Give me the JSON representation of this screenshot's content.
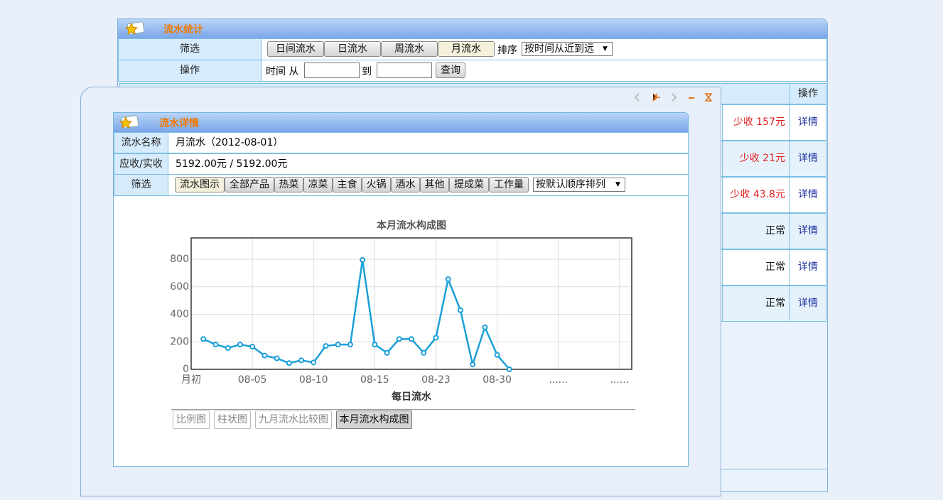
{
  "main_panel": {
    "title": "流水统计",
    "filter_label": "筛选",
    "filter_buttons": [
      "日间流水",
      "日流水",
      "周流水",
      "月流水"
    ],
    "sort_label": "排序",
    "sort_select": "按时间从近到远",
    "action_label": "操作",
    "time_from_label": "时间 从",
    "time_to_label": "到",
    "query_button": "查询",
    "table": {
      "header_action": "操作",
      "rows": [
        {
          "status": "少收 157元",
          "action": "详情"
        },
        {
          "status": "少收 21元",
          "action": "详情"
        },
        {
          "status": "少收 43.8元",
          "action": "详情"
        },
        {
          "status": "正常",
          "action": "详情"
        },
        {
          "status": "正常",
          "action": "详情"
        },
        {
          "status": "正常",
          "action": "详情"
        }
      ]
    }
  },
  "detail_dialog": {
    "title": "流水详情",
    "rows": [
      {
        "label": "流水名称",
        "value": "月流水（2012-08-01）"
      },
      {
        "label": "应收/实收",
        "value": "5192.00元 / 5192.00元"
      }
    ],
    "filter_label": "筛选",
    "filter_buttons": [
      "流水图示",
      "全部产品",
      "热菜",
      "凉菜",
      "主食",
      "火锅",
      "酒水",
      "其他",
      "提成菜",
      "工作量"
    ],
    "sort_select": "按默认顺序排列",
    "chart_tabs": [
      "比例图",
      "柱状图",
      "九月流水比较图",
      "本月流水构成图"
    ]
  },
  "chart_data": {
    "type": "line",
    "title": "本月流水构成图",
    "x_label": "每日流水",
    "x": [
      1,
      2,
      3,
      4,
      5,
      6,
      7,
      8,
      9,
      10,
      11,
      12,
      13,
      14,
      15,
      16,
      17,
      18,
      19,
      20,
      21,
      22,
      23,
      24,
      25,
      26
    ],
    "values": [
      220,
      180,
      155,
      180,
      165,
      100,
      80,
      45,
      65,
      50,
      170,
      180,
      180,
      795,
      180,
      120,
      220,
      220,
      120,
      230,
      655,
      430,
      35,
      305,
      105,
      0
    ],
    "color": "#1a9fd8",
    "xlim": [
      0,
      36
    ],
    "xticks": [
      {
        "value": 0,
        "label": "月初"
      },
      {
        "value": 5,
        "label": "08-05"
      },
      {
        "value": 10,
        "label": "08-10"
      },
      {
        "value": 15,
        "label": "08-15"
      },
      {
        "value": 20,
        "label": "08-23"
      },
      {
        "value": 25,
        "label": "08-30"
      },
      {
        "value": 30,
        "label": "......"
      },
      {
        "value": 35,
        "label": "......"
      }
    ],
    "ylim": [
      0,
      955
    ],
    "yticks": [
      0,
      200,
      400,
      600,
      800
    ],
    "grid": true
  }
}
